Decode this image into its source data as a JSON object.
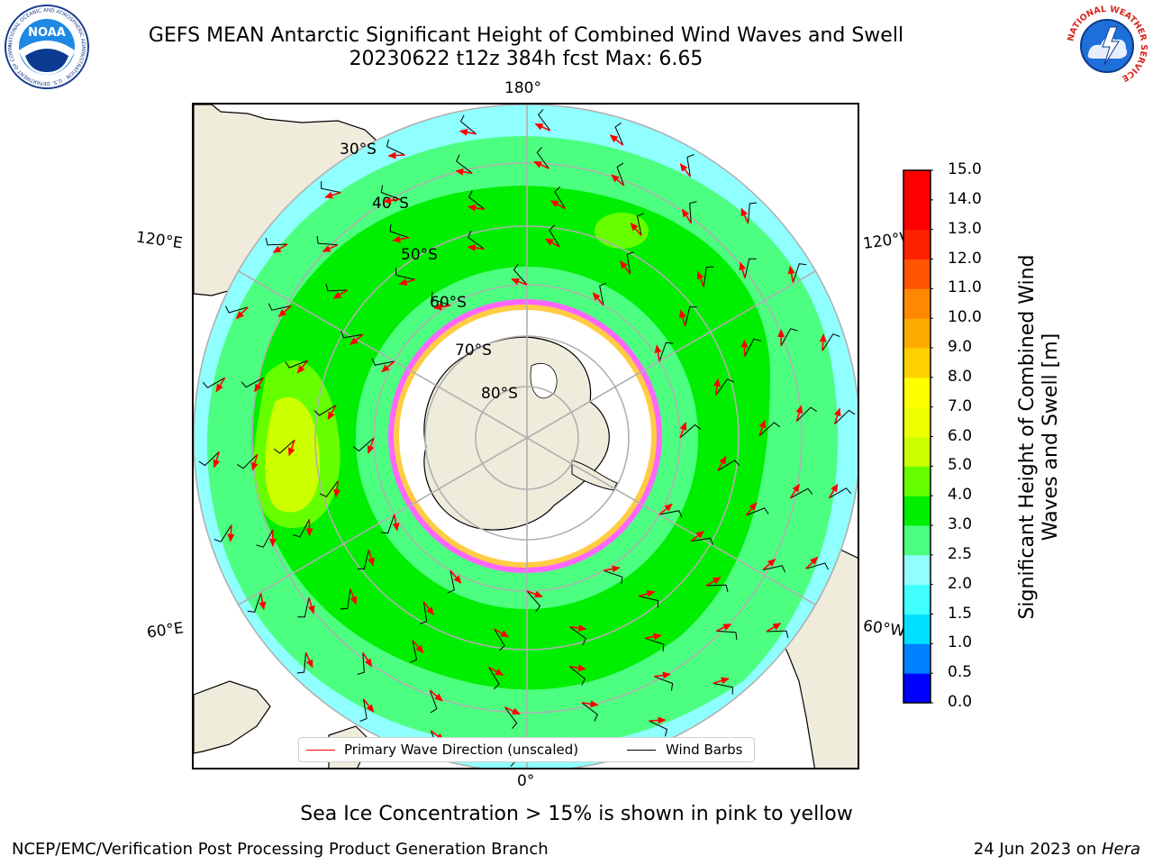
{
  "title": {
    "line1": "GEFS MEAN Antarctic Significant Height of Combined Wind Waves and Swell",
    "line2": "20230622 t12z 384h fcst   Max: 6.65"
  },
  "logos": {
    "noaa_text": "NOAA",
    "noaa_ring": "NATIONAL OCEANIC AND ATMOSPHERIC ADMINISTRATION · U.S. DEPARTMENT OF COMMERCE",
    "nws_ring": "NATIONAL WEATHER SERVICE"
  },
  "map": {
    "projection": "south-polar-stereographic",
    "longitude_labels": [
      "180°",
      "120°E",
      "120°W",
      "60°E",
      "60°W",
      "0°"
    ],
    "latitude_labels": [
      "30°S",
      "40°S",
      "50°S",
      "60°S",
      "70°S",
      "80°S"
    ],
    "colors": {
      "land": "#efecdc",
      "ice": "#ffffff",
      "ice_edge": [
        "#ff44ff",
        "#ff88ff",
        "#ffcc44"
      ],
      "ocean_base": "#4cff80"
    },
    "legend": {
      "wave_label": "Primary Wave Direction (unscaled)",
      "wave_color": "#ff0000",
      "barb_label": "Wind Barbs",
      "barb_color": "#000000"
    }
  },
  "colorbar": {
    "title": "Significant Height of Combined Wind Waves and Swell [m]",
    "tick_labels": [
      "0.0",
      "0.5",
      "1.0",
      "1.5",
      "2.0",
      "2.5",
      "3.0",
      "4.0",
      "5.0",
      "6.0",
      "7.0",
      "8.0",
      "9.0",
      "10.0",
      "11.0",
      "12.0",
      "13.0",
      "14.0",
      "15.0"
    ],
    "colors": [
      "#0000ff",
      "#0080ff",
      "#00dfff",
      "#40ffff",
      "#90ffff",
      "#4cff80",
      "#00ee00",
      "#66ff00",
      "#ccff00",
      "#eeff00",
      "#ffff00",
      "#ffd000",
      "#ffaa00",
      "#ff8800",
      "#ff5500",
      "#ff2200",
      "#ff0000",
      "#ff0000"
    ]
  },
  "footnote": "Sea Ice Concentration > 15% is shown in pink to yellow",
  "credit": "NCEP/EMC/Verification Post Processing Product Generation Branch",
  "date_text": "24 Jun 2023 on ",
  "date_host": "Hera"
}
